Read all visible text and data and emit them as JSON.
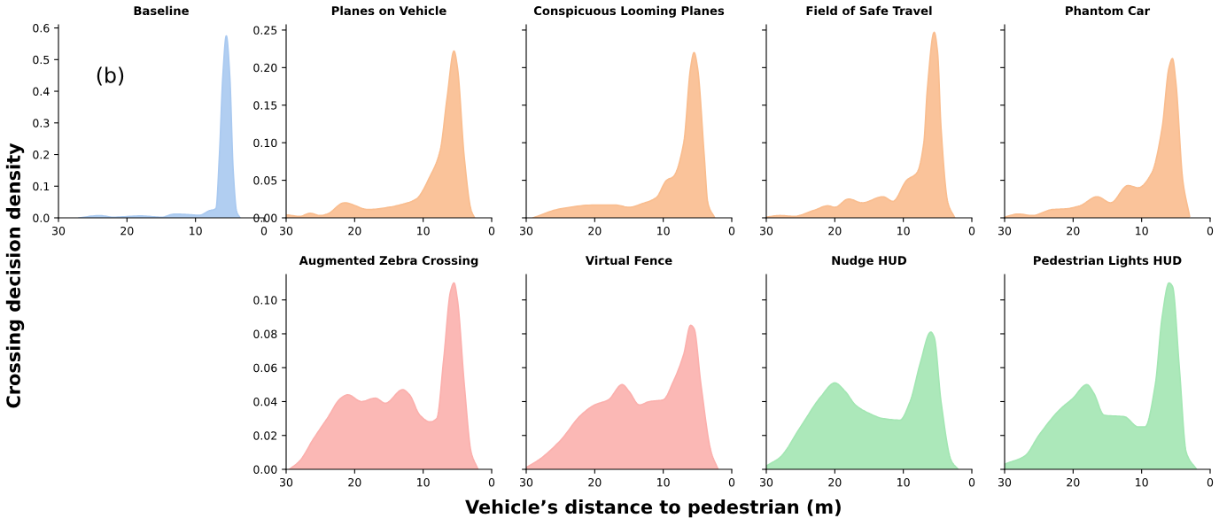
{
  "chart_data": [
    {
      "type": "area",
      "title": "Baseline",
      "ylabel": "Crossing decision density",
      "annotations": [
        "(b)"
      ],
      "xlim": [
        30,
        0
      ],
      "xticks": [
        30,
        20,
        10,
        0
      ],
      "ylim": [
        0,
        0.61
      ],
      "yticks": [
        {
          "value": 0,
          "label": "0.0"
        },
        0.1,
        0.2,
        0.3,
        0.4,
        0.5,
        0.6
      ],
      "series": [
        {
          "color": "#a9c9f0",
          "x": [
            27,
            24,
            22,
            18,
            15,
            13,
            11,
            9.5,
            8,
            7,
            6.5,
            6,
            5.5,
            5,
            4.5,
            4,
            3.5
          ],
          "values": [
            0,
            0.007,
            0.002,
            0.006,
            0.002,
            0.012,
            0.01,
            0.008,
            0.022,
            0.03,
            0.2,
            0.45,
            0.575,
            0.45,
            0.15,
            0.02,
            0
          ]
        }
      ]
    },
    {
      "type": "area",
      "title": "Planes on Vehicle",
      "xlim": [
        30,
        0
      ],
      "xticks": [
        30,
        20,
        10,
        0
      ],
      "ylim": [
        0,
        0.257
      ],
      "yticks": [
        {
          "value": 0,
          "label": "0.00"
        },
        {
          "value": 0.05,
          "label": "0.05"
        },
        {
          "value": 0.1,
          "label": "0.10"
        },
        {
          "value": 0.15,
          "label": "0.15"
        },
        {
          "value": 0.2,
          "label": "0.20"
        },
        {
          "value": 0.25,
          "label": "0.25"
        }
      ],
      "series": [
        {
          "color": "#f9bd8f",
          "x": [
            30,
            28,
            26.5,
            25,
            24,
            21.5,
            18,
            15,
            13,
            11,
            9,
            7.5,
            6.5,
            5.5,
            5,
            4,
            3,
            2.5
          ],
          "values": [
            0.004,
            0.002,
            0.006,
            0.003,
            0.005,
            0.02,
            0.011,
            0.014,
            0.018,
            0.025,
            0.055,
            0.09,
            0.16,
            0.222,
            0.2,
            0.08,
            0.01,
            0
          ]
        }
      ]
    },
    {
      "type": "area",
      "title": "Conspicuous Looming Planes",
      "tick_labels": "x",
      "xlim": [
        30,
        0
      ],
      "xticks": [
        30,
        20,
        10,
        0
      ],
      "ylim": [
        0,
        0.257
      ],
      "yticks": [
        {
          "value": 0,
          "label": null
        },
        {
          "value": 0.05,
          "label": null
        },
        {
          "value": 0.1,
          "label": null
        },
        {
          "value": 0.15,
          "label": null
        },
        {
          "value": 0.2,
          "label": null
        },
        {
          "value": 0.25,
          "label": null
        }
      ],
      "series": [
        {
          "color": "#f9bd8f",
          "x": [
            29,
            25,
            20,
            17,
            15,
            13,
            11,
            9.5,
            8.5,
            7,
            6,
            5.5,
            5,
            4,
            3.5,
            2.5
          ],
          "values": [
            0,
            0.012,
            0.017,
            0.017,
            0.014,
            0.019,
            0.027,
            0.05,
            0.055,
            0.1,
            0.2,
            0.22,
            0.2,
            0.08,
            0.02,
            0
          ]
        }
      ]
    },
    {
      "type": "area",
      "title": "Field of Safe Travel",
      "tick_labels": "x",
      "xlim": [
        30,
        0
      ],
      "xticks": [
        30,
        20,
        10,
        0
      ],
      "ylim": [
        0,
        0.257
      ],
      "yticks": [
        {
          "value": 0,
          "label": null
        },
        {
          "value": 0.05,
          "label": null
        },
        {
          "value": 0.1,
          "label": null
        },
        {
          "value": 0.15,
          "label": null
        },
        {
          "value": 0.2,
          "label": null
        },
        {
          "value": 0.25,
          "label": null
        }
      ],
      "series": [
        {
          "color": "#f9bd8f",
          "x": [
            30,
            28,
            26,
            23,
            21,
            20,
            18,
            16,
            13,
            11.5,
            9.5,
            8,
            7,
            6.5,
            5.5,
            5,
            4.5,
            3.5,
            2.5
          ],
          "values": [
            0.001,
            0.003,
            0.002,
            0.01,
            0.016,
            0.014,
            0.025,
            0.02,
            0.028,
            0.022,
            0.05,
            0.06,
            0.1,
            0.17,
            0.247,
            0.22,
            0.12,
            0.02,
            0
          ]
        }
      ]
    },
    {
      "type": "area",
      "title": "Phantom Car",
      "tick_labels": "x",
      "xlim": [
        30,
        0
      ],
      "xticks": [
        30,
        20,
        10,
        0
      ],
      "ylim": [
        0,
        0.257
      ],
      "yticks": [
        {
          "value": 0,
          "label": null
        },
        {
          "value": 0.05,
          "label": null
        },
        {
          "value": 0.1,
          "label": null
        },
        {
          "value": 0.15,
          "label": null
        },
        {
          "value": 0.2,
          "label": null
        },
        {
          "value": 0.25,
          "label": null
        }
      ],
      "series": [
        {
          "color": "#f9bd8f",
          "x": [
            30,
            28,
            26,
            23,
            21,
            19,
            16.5,
            14.5,
            12,
            10.5,
            8.5,
            7,
            6,
            5.5,
            5,
            4,
            3
          ],
          "values": [
            0.001,
            0.005,
            0.003,
            0.011,
            0.012,
            0.016,
            0.028,
            0.02,
            0.043,
            0.04,
            0.06,
            0.12,
            0.2,
            0.212,
            0.18,
            0.05,
            0.002
          ]
        }
      ]
    },
    {
      "type": "area",
      "title": "Augmented Zebra Crossing",
      "xlim": [
        30,
        0
      ],
      "xticks": [
        30,
        20,
        10,
        0
      ],
      "ylim": [
        0,
        0.115
      ],
      "yticks": [
        {
          "value": 0,
          "label": "0.00"
        },
        {
          "value": 0.02,
          "label": "0.02"
        },
        {
          "value": 0.04,
          "label": "0.04"
        },
        {
          "value": 0.06,
          "label": "0.06"
        },
        {
          "value": 0.08,
          "label": "0.08"
        },
        {
          "value": 0.1,
          "label": "0.10"
        }
      ],
      "series": [
        {
          "color": "#fbb0ad",
          "x": [
            29.5,
            28,
            26,
            24,
            22,
            21,
            19,
            17,
            15.5,
            13,
            12,
            10.5,
            9,
            8,
            7,
            6,
            5.5,
            5,
            4,
            3,
            2
          ],
          "values": [
            0,
            0.005,
            0.018,
            0.03,
            0.042,
            0.044,
            0.04,
            0.042,
            0.039,
            0.047,
            0.044,
            0.032,
            0.028,
            0.03,
            0.065,
            0.105,
            0.11,
            0.1,
            0.05,
            0.01,
            0
          ]
        }
      ]
    },
    {
      "type": "area",
      "title": "Virtual Fence",
      "xlabel": "Vehicle’s distance to pedestrian (m)",
      "tick_labels": "x",
      "xlim": [
        30,
        0
      ],
      "xticks": [
        30,
        20,
        10,
        0
      ],
      "ylim": [
        0,
        0.115
      ],
      "yticks": [
        {
          "value": 0,
          "label": null
        },
        {
          "value": 0.02,
          "label": null
        },
        {
          "value": 0.04,
          "label": null
        },
        {
          "value": 0.06,
          "label": null
        },
        {
          "value": 0.08,
          "label": null
        },
        {
          "value": 0.1,
          "label": null
        }
      ],
      "series": [
        {
          "color": "#fbb0ad",
          "x": [
            30,
            28,
            25,
            22,
            20,
            18,
            16,
            15,
            13.5,
            12,
            10,
            8.5,
            7,
            6,
            5.5,
            4.5,
            3,
            2
          ],
          "values": [
            0.001,
            0.006,
            0.017,
            0.032,
            0.038,
            0.041,
            0.05,
            0.046,
            0.038,
            0.04,
            0.041,
            0.052,
            0.068,
            0.085,
            0.083,
            0.05,
            0.01,
            0
          ]
        }
      ]
    },
    {
      "type": "area",
      "title": "Nudge HUD",
      "tick_labels": "x",
      "xlim": [
        30,
        0
      ],
      "xticks": [
        30,
        20,
        10,
        0
      ],
      "ylim": [
        0,
        0.115
      ],
      "yticks": [
        {
          "value": 0,
          "label": null
        },
        {
          "value": 0.02,
          "label": null
        },
        {
          "value": 0.04,
          "label": null
        },
        {
          "value": 0.06,
          "label": null
        },
        {
          "value": 0.08,
          "label": null
        },
        {
          "value": 0.1,
          "label": null
        }
      ],
      "series": [
        {
          "color": "#a3e6b3",
          "x": [
            30,
            28,
            25,
            22,
            20,
            18.5,
            17,
            15,
            13,
            10.5,
            9,
            7.5,
            6,
            5.5,
            4.5,
            3,
            2
          ],
          "values": [
            0.002,
            0.007,
            0.025,
            0.043,
            0.051,
            0.046,
            0.038,
            0.033,
            0.03,
            0.029,
            0.04,
            0.063,
            0.081,
            0.078,
            0.04,
            0.005,
            0
          ]
        }
      ]
    },
    {
      "type": "area",
      "title": "Pedestrian Lights HUD",
      "tick_labels": "x",
      "xlim": [
        30,
        0
      ],
      "xticks": [
        30,
        20,
        10,
        0
      ],
      "ylim": [
        0,
        0.115
      ],
      "yticks": [
        {
          "value": 0,
          "label": null
        },
        {
          "value": 0.02,
          "label": null
        },
        {
          "value": 0.04,
          "label": null
        },
        {
          "value": 0.06,
          "label": null
        },
        {
          "value": 0.08,
          "label": null
        },
        {
          "value": 0.1,
          "label": null
        }
      ],
      "series": [
        {
          "color": "#a3e6b3",
          "x": [
            30,
            27,
            25,
            22,
            20,
            18,
            17,
            15.5,
            12.5,
            10.5,
            9.5,
            8,
            7,
            6,
            5.5,
            4.5,
            3.5,
            2
          ],
          "values": [
            0.003,
            0.008,
            0.02,
            0.035,
            0.042,
            0.05,
            0.045,
            0.032,
            0.031,
            0.025,
            0.025,
            0.05,
            0.09,
            0.11,
            0.108,
            0.06,
            0.01,
            0
          ]
        }
      ]
    }
  ]
}
